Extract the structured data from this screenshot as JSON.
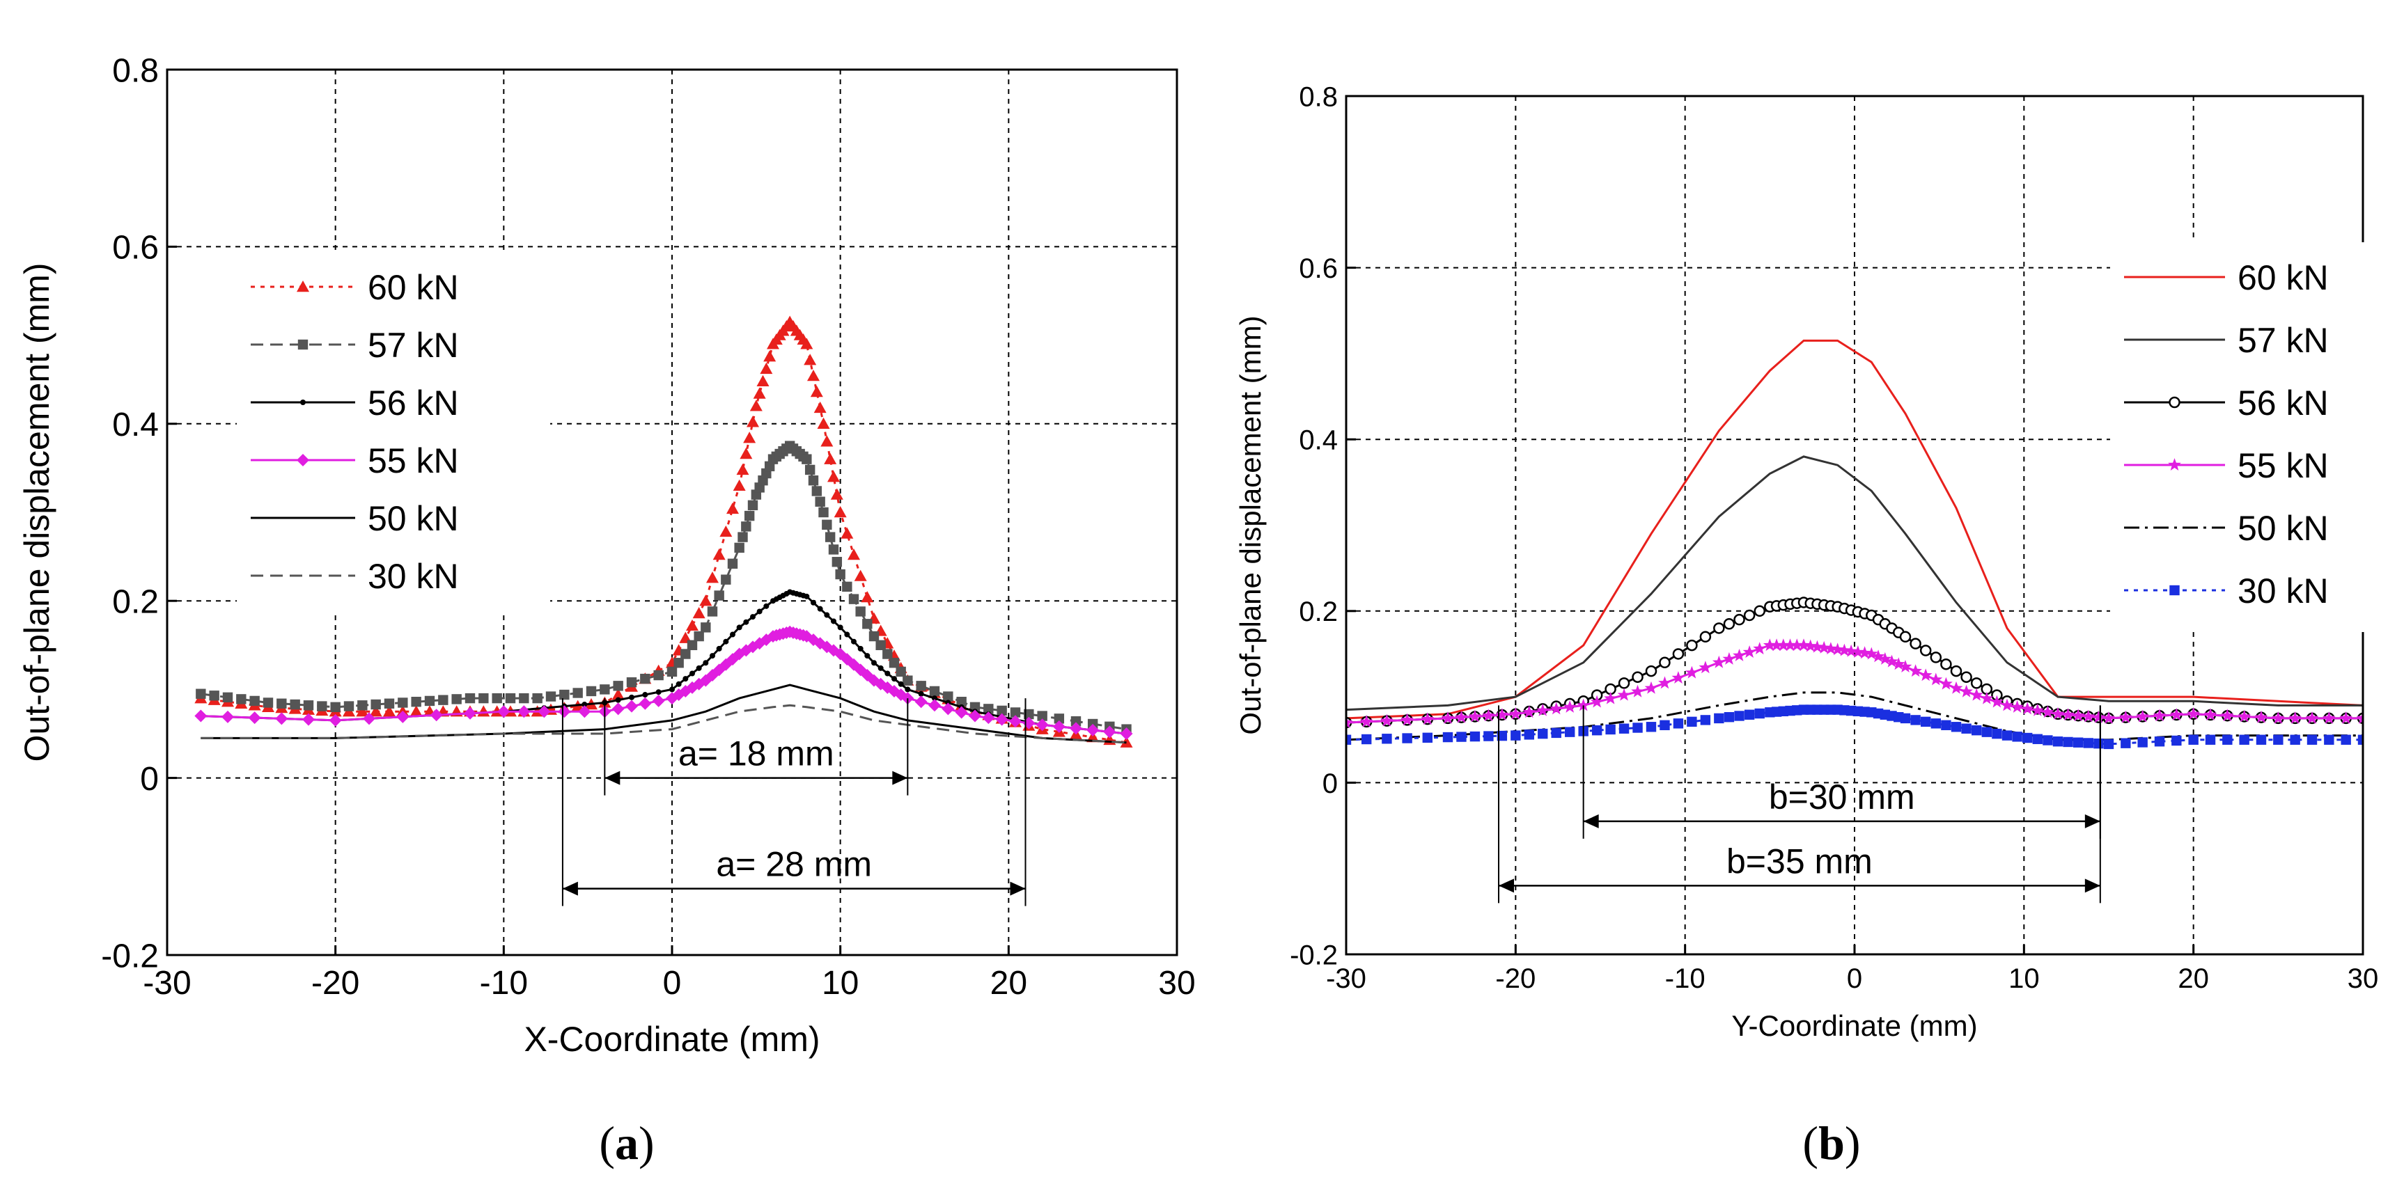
{
  "chart_data": [
    {
      "panel": "a",
      "panel_label": "(a)",
      "type": "line",
      "xlabel": "X-Coordinate (mm)",
      "ylabel": "Out-of-plane displacement (mm)",
      "xlim": [
        -30,
        30
      ],
      "ylim": [
        -0.2,
        0.8
      ],
      "xticks": [
        -30,
        -20,
        -10,
        0,
        10,
        20,
        30
      ],
      "xtick_labels": [
        "-30",
        "-20",
        "-10",
        "0",
        "10",
        "20",
        "30"
      ],
      "yticks": [
        -0.2,
        0,
        0.2,
        0.4,
        0.6,
        0.8
      ],
      "ytick_labels": [
        "-0.2",
        "0",
        "0.2",
        "0.4",
        "0.6",
        "0.8"
      ],
      "grid": true,
      "legend_position": "upper-left",
      "series": [
        {
          "name": "60 kN",
          "color": "#e8201c",
          "dash": "dotted",
          "marker": "triangle",
          "x": [
            -28,
            -24,
            -20,
            -16,
            -12,
            -8,
            -4,
            0,
            2,
            4,
            5,
            6,
            7,
            8,
            9,
            10,
            12,
            14,
            18,
            22,
            27
          ],
          "y": [
            0.09,
            0.08,
            0.075,
            0.075,
            0.075,
            0.075,
            0.085,
            0.13,
            0.2,
            0.33,
            0.42,
            0.49,
            0.515,
            0.49,
            0.4,
            0.3,
            0.18,
            0.11,
            0.075,
            0.055,
            0.04
          ]
        },
        {
          "name": "57 kN",
          "color": "#555555",
          "dash": "dashed",
          "marker": "square",
          "x": [
            -28,
            -24,
            -20,
            -16,
            -12,
            -8,
            -4,
            0,
            2,
            4,
            5,
            6,
            7,
            8,
            9,
            10,
            12,
            14,
            18,
            22,
            27
          ],
          "y": [
            0.095,
            0.085,
            0.08,
            0.085,
            0.09,
            0.09,
            0.1,
            0.12,
            0.17,
            0.26,
            0.32,
            0.36,
            0.375,
            0.36,
            0.3,
            0.23,
            0.16,
            0.11,
            0.08,
            0.07,
            0.055
          ]
        },
        {
          "name": "56 kN",
          "color": "#000000",
          "dash": "solid",
          "marker": "dot",
          "x": [
            -28,
            -20,
            -10,
            -4,
            0,
            2,
            4,
            6,
            7,
            8,
            10,
            12,
            14,
            18,
            22,
            27
          ],
          "y": [
            0.07,
            0.065,
            0.075,
            0.085,
            0.1,
            0.13,
            0.17,
            0.2,
            0.21,
            0.205,
            0.17,
            0.13,
            0.1,
            0.075,
            0.06,
            0.05
          ]
        },
        {
          "name": "55 kN",
          "color": "#e01ee0",
          "dash": "solid",
          "marker": "diamond",
          "x": [
            -28,
            -20,
            -10,
            -4,
            0,
            2,
            4,
            6,
            7,
            8,
            10,
            12,
            14,
            18,
            22,
            27
          ],
          "y": [
            0.07,
            0.065,
            0.075,
            0.075,
            0.09,
            0.11,
            0.14,
            0.16,
            0.165,
            0.16,
            0.14,
            0.11,
            0.09,
            0.07,
            0.06,
            0.05
          ]
        },
        {
          "name": "50 kN",
          "color": "#000000",
          "dash": "solid",
          "marker": "none",
          "x": [
            -28,
            -20,
            -10,
            -4,
            0,
            2,
            4,
            6,
            7,
            8,
            10,
            12,
            14,
            18,
            22,
            27
          ],
          "y": [
            0.045,
            0.045,
            0.05,
            0.055,
            0.065,
            0.075,
            0.09,
            0.1,
            0.105,
            0.1,
            0.09,
            0.075,
            0.065,
            0.055,
            0.045,
            0.04
          ]
        },
        {
          "name": "30 kN",
          "color": "#555555",
          "dash": "dashed",
          "marker": "none",
          "x": [
            -28,
            -20,
            -10,
            -4,
            0,
            2,
            4,
            6,
            7,
            8,
            10,
            12,
            14,
            18,
            22,
            27
          ],
          "y": [
            0.045,
            0.045,
            0.05,
            0.05,
            0.055,
            0.065,
            0.075,
            0.08,
            0.082,
            0.08,
            0.075,
            0.065,
            0.06,
            0.05,
            0.045,
            0.04
          ]
        }
      ],
      "annotations": [
        {
          "text": "a= 18 mm",
          "x1": -4,
          "x2": 14,
          "y": 0,
          "vlines": [
            -4,
            14
          ]
        },
        {
          "text": "a= 28 mm",
          "x1": -6.5,
          "x2": 21,
          "y": -0.125,
          "vlines": [
            -6.5,
            21
          ]
        }
      ]
    },
    {
      "panel": "b",
      "panel_label": "(b)",
      "type": "line",
      "xlabel": "Y-Coordinate (mm)",
      "ylabel": "Out-of-plane displacement (mm)",
      "xlim": [
        -30,
        30
      ],
      "ylim": [
        -0.2,
        0.8
      ],
      "xticks": [
        -30,
        -20,
        -10,
        0,
        10,
        20,
        30
      ],
      "xtick_labels": [
        "-30",
        "-20",
        "-10",
        "0",
        "10",
        "20",
        "30"
      ],
      "yticks": [
        -0.2,
        0,
        0.2,
        0.4,
        0.6,
        0.8
      ],
      "ytick_labels": [
        "-0.2",
        "0",
        "0.2",
        "0.4",
        "0.6",
        "0.8"
      ],
      "grid": true,
      "legend_position": "upper-right",
      "series": [
        {
          "name": "60 kN",
          "color": "#e8201c",
          "dash": "solid",
          "marker": "none",
          "x": [
            -30,
            -24,
            -20,
            -16,
            -12,
            -8,
            -5,
            -3,
            -1,
            1,
            3,
            6,
            9,
            12,
            15,
            20,
            25,
            30
          ],
          "y": [
            0.075,
            0.08,
            0.1,
            0.16,
            0.29,
            0.41,
            0.48,
            0.515,
            0.515,
            0.49,
            0.43,
            0.32,
            0.18,
            0.1,
            0.1,
            0.1,
            0.095,
            0.09
          ]
        },
        {
          "name": "57 kN",
          "color": "#333333",
          "dash": "solid",
          "marker": "none",
          "x": [
            -30,
            -24,
            -20,
            -16,
            -12,
            -8,
            -5,
            -3,
            -1,
            1,
            3,
            6,
            9,
            12,
            15,
            20,
            25,
            30
          ],
          "y": [
            0.085,
            0.09,
            0.1,
            0.14,
            0.22,
            0.31,
            0.36,
            0.38,
            0.37,
            0.34,
            0.29,
            0.21,
            0.14,
            0.1,
            0.095,
            0.095,
            0.09,
            0.09
          ]
        },
        {
          "name": "56 kN",
          "color": "#000000",
          "dash": "solid",
          "marker": "circle",
          "x": [
            -30,
            -24,
            -20,
            -16,
            -12,
            -8,
            -5,
            -3,
            -1,
            1,
            3,
            6,
            9,
            12,
            15,
            20,
            25,
            30
          ],
          "y": [
            0.07,
            0.075,
            0.08,
            0.095,
            0.13,
            0.18,
            0.205,
            0.21,
            0.205,
            0.195,
            0.17,
            0.13,
            0.095,
            0.08,
            0.075,
            0.08,
            0.075,
            0.075
          ]
        },
        {
          "name": "55 kN",
          "color": "#e01ee0",
          "dash": "solid",
          "marker": "star",
          "x": [
            -30,
            -24,
            -20,
            -16,
            -12,
            -8,
            -5,
            -3,
            -1,
            1,
            3,
            6,
            9,
            12,
            15,
            20,
            25,
            30
          ],
          "y": [
            0.07,
            0.075,
            0.08,
            0.09,
            0.11,
            0.14,
            0.16,
            0.16,
            0.155,
            0.15,
            0.135,
            0.11,
            0.09,
            0.08,
            0.075,
            0.08,
            0.075,
            0.075
          ]
        },
        {
          "name": "50 kN",
          "color": "#000000",
          "dash": "dashdot",
          "marker": "none",
          "x": [
            -30,
            -24,
            -20,
            -16,
            -12,
            -8,
            -5,
            -3,
            -1,
            1,
            3,
            6,
            9,
            12,
            15,
            20,
            25,
            30
          ],
          "y": [
            0.05,
            0.055,
            0.06,
            0.065,
            0.075,
            0.09,
            0.1,
            0.105,
            0.105,
            0.1,
            0.09,
            0.075,
            0.06,
            0.05,
            0.05,
            0.055,
            0.055,
            0.055
          ]
        },
        {
          "name": "30 kN",
          "color": "#1a2fe0",
          "dash": "dotted",
          "marker": "square",
          "x": [
            -30,
            -24,
            -20,
            -16,
            -12,
            -8,
            -5,
            -3,
            -1,
            1,
            3,
            6,
            9,
            12,
            15,
            20,
            25,
            30
          ],
          "y": [
            0.05,
            0.053,
            0.055,
            0.06,
            0.065,
            0.075,
            0.082,
            0.085,
            0.085,
            0.082,
            0.075,
            0.065,
            0.055,
            0.048,
            0.045,
            0.05,
            0.05,
            0.05
          ]
        }
      ],
      "annotations": [
        {
          "text": "b=30 mm",
          "x1": -16,
          "x2": 14.5,
          "y": -0.045,
          "vlines": [
            -16,
            14.5
          ]
        },
        {
          "text": "b=35 mm",
          "x1": -21,
          "x2": 14.5,
          "y": -0.12,
          "vlines": [
            -21,
            14.5
          ]
        }
      ]
    }
  ]
}
